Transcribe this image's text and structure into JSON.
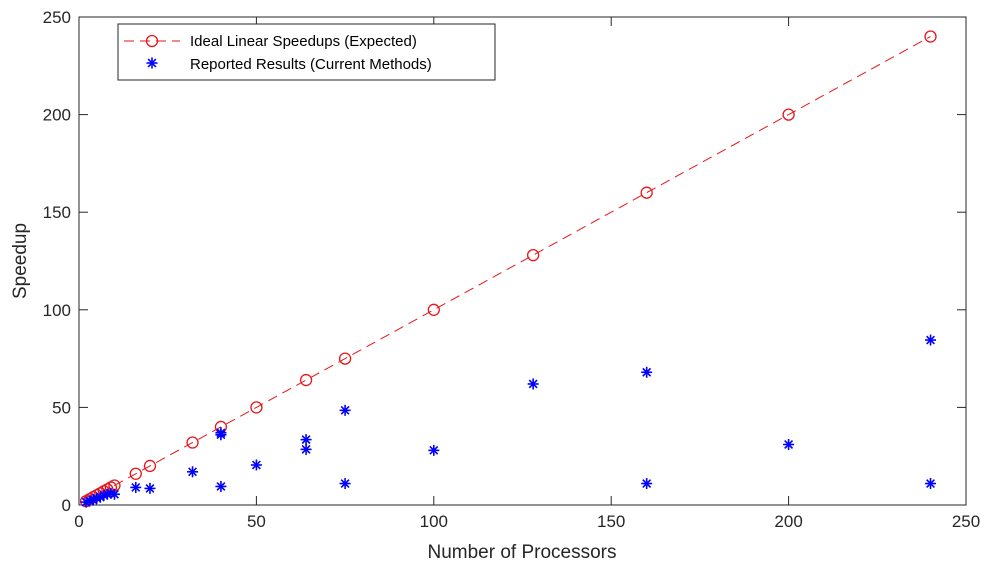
{
  "chart_data": {
    "type": "line",
    "title": "",
    "xlabel": "Number of Processors",
    "ylabel": "Speedup",
    "xlim": [
      0,
      250
    ],
    "ylim": [
      0,
      250
    ],
    "xticks": [
      0,
      50,
      100,
      150,
      200,
      250
    ],
    "yticks": [
      0,
      50,
      100,
      150,
      200,
      250
    ],
    "grid": false,
    "legend_position": "top-left",
    "series": [
      {
        "name": "Ideal Linear Speedups (Expected)",
        "style": "dashed-line-circle-markers",
        "color": "#e8161b",
        "x": [
          2,
          3,
          4,
          5,
          6,
          7,
          8,
          9,
          10,
          16,
          20,
          32,
          40,
          50,
          64,
          75,
          100,
          128,
          160,
          200,
          240
        ],
        "y": [
          2,
          3,
          4,
          5,
          6,
          7,
          8,
          9,
          10,
          16,
          20,
          32,
          40,
          50,
          64,
          75,
          100,
          128,
          160,
          200,
          240
        ]
      },
      {
        "name": "Reported Results (Current Methods)",
        "style": "asterisk-markers",
        "color": "#0000ff",
        "x": [
          2,
          3,
          4,
          4,
          5,
          6,
          7,
          8,
          9,
          10,
          16,
          20,
          32,
          40,
          40,
          40,
          50,
          64,
          64,
          75,
          75,
          100,
          128,
          160,
          160,
          200,
          240,
          240
        ],
        "y": [
          1.5,
          2,
          3,
          2.5,
          3.5,
          4,
          5,
          5.5,
          6,
          5.5,
          9,
          8.5,
          17,
          9.5,
          36,
          37,
          20.5,
          28.5,
          33.5,
          48.5,
          11,
          28,
          62,
          68,
          11,
          31,
          84.5,
          11
        ]
      }
    ]
  }
}
